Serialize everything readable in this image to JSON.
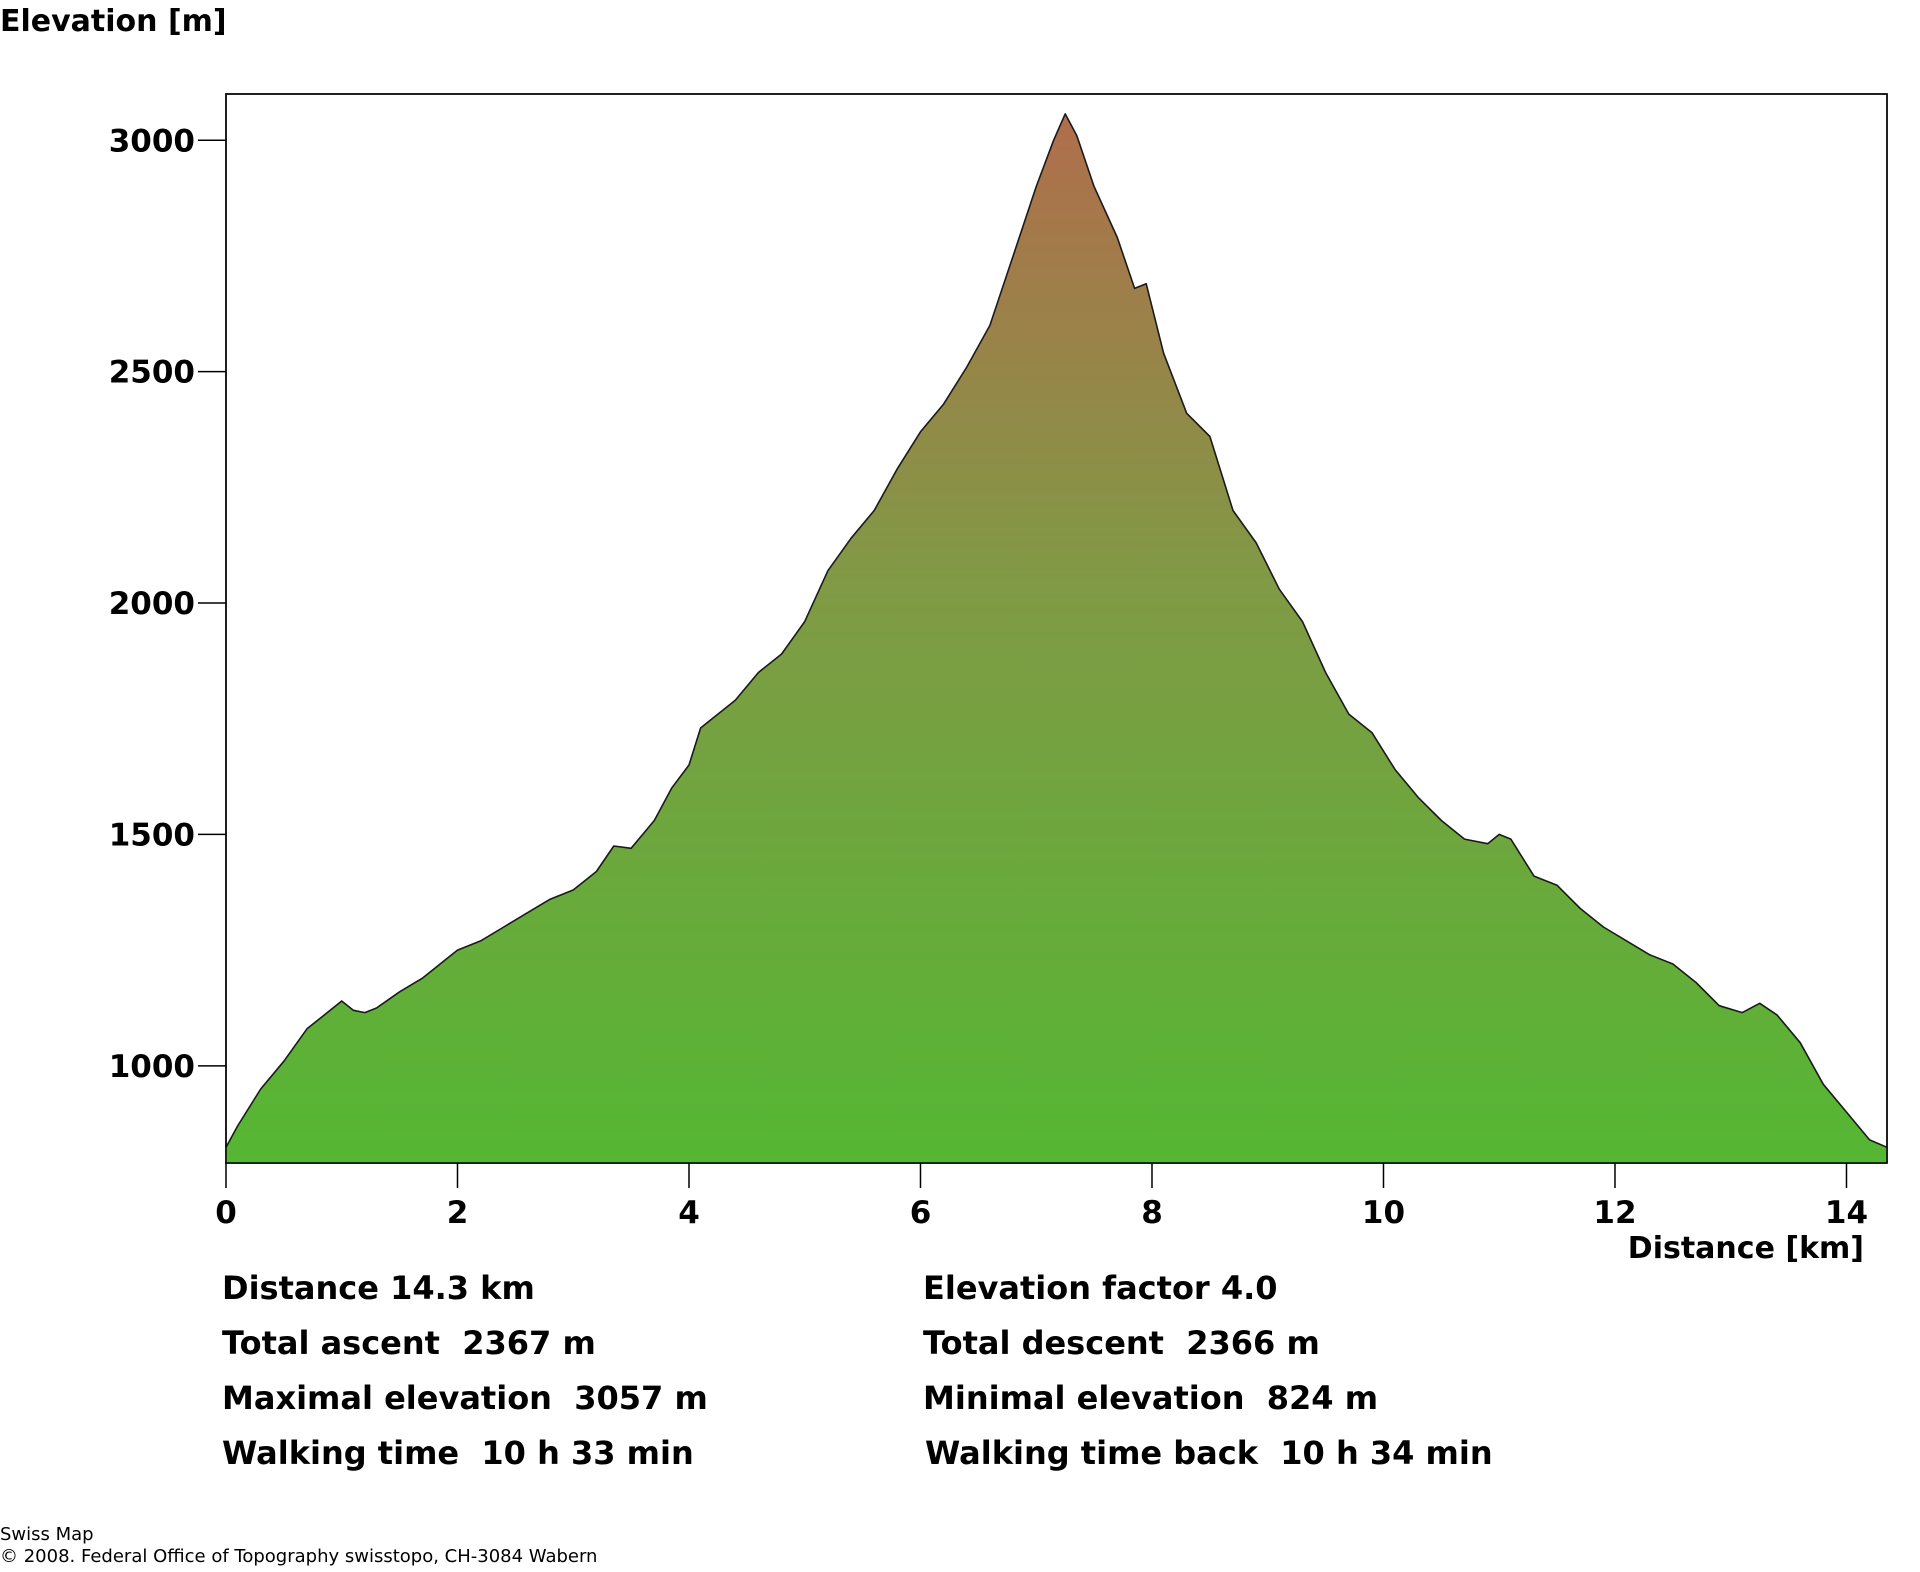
{
  "chart_data": {
    "type": "area",
    "title": "",
    "ylabel": "Elevation [m]",
    "xlabel": "Distance [km]",
    "xlim": [
      0,
      14.35
    ],
    "ylim": [
      790,
      3100
    ],
    "x_ticks": [
      0,
      2,
      4,
      6,
      8,
      10,
      12,
      14
    ],
    "y_ticks": [
      1000,
      1500,
      2000,
      2500,
      3000
    ],
    "grid": false,
    "fill_gradient": {
      "bottom": "#55b733",
      "top": "#b06e4c"
    },
    "series": [
      {
        "x": [
          0,
          0.1,
          0.3,
          0.5,
          0.7,
          0.9,
          1.0,
          1.1,
          1.2,
          1.3,
          1.5,
          1.7,
          1.9,
          2.0,
          2.2,
          2.4,
          2.6,
          2.8,
          3.0,
          3.2,
          3.35,
          3.5,
          3.7,
          3.85,
          4.0,
          4.1,
          4.2,
          4.4,
          4.6,
          4.8,
          5.0,
          5.2,
          5.4,
          5.6,
          5.8,
          6.0,
          6.2,
          6.4,
          6.6,
          6.8,
          7.0,
          7.15,
          7.25,
          7.35,
          7.5,
          7.7,
          7.85,
          7.95,
          8.1,
          8.3,
          8.5,
          8.7,
          8.9,
          9.1,
          9.3,
          9.5,
          9.7,
          9.9,
          10.1,
          10.3,
          10.5,
          10.7,
          10.9,
          11.0,
          11.1,
          11.3,
          11.5,
          11.7,
          11.9,
          12.1,
          12.3,
          12.5,
          12.7,
          12.9,
          13.1,
          13.25,
          13.4,
          13.6,
          13.8,
          14.0,
          14.2,
          14.35
        ],
        "y": [
          824,
          870,
          950,
          1010,
          1080,
          1120,
          1140,
          1120,
          1115,
          1125,
          1160,
          1190,
          1230,
          1250,
          1270,
          1300,
          1330,
          1360,
          1380,
          1420,
          1475,
          1470,
          1530,
          1600,
          1650,
          1730,
          1750,
          1790,
          1850,
          1890,
          1960,
          2070,
          2140,
          2200,
          2290,
          2370,
          2430,
          2510,
          2600,
          2750,
          2900,
          3000,
          3057,
          3010,
          2900,
          2790,
          2680,
          2690,
          2540,
          2410,
          2360,
          2200,
          2130,
          2030,
          1960,
          1850,
          1760,
          1720,
          1640,
          1580,
          1530,
          1490,
          1480,
          1500,
          1490,
          1410,
          1390,
          1340,
          1300,
          1270,
          1240,
          1220,
          1180,
          1130,
          1115,
          1135,
          1110,
          1050,
          960,
          900,
          840,
          824
        ]
      }
    ]
  },
  "stats": {
    "distance": "Distance 14.3 km",
    "elevation_factor": "Elevation factor 4.0",
    "total_ascent": "Total ascent  2367 m",
    "total_descent": "Total descent  2366 m",
    "max_elevation": "Maximal elevation  3057 m",
    "min_elevation": "Minimal elevation  824 m",
    "walking_time": "Walking time  10 h 33 min",
    "walking_time_back": "Walking time back  10 h 34 min"
  },
  "footer": {
    "line1": "Swiss Map",
    "line2": "© 2008. Federal Office of Topography swisstopo, CH-3084 Wabern"
  }
}
